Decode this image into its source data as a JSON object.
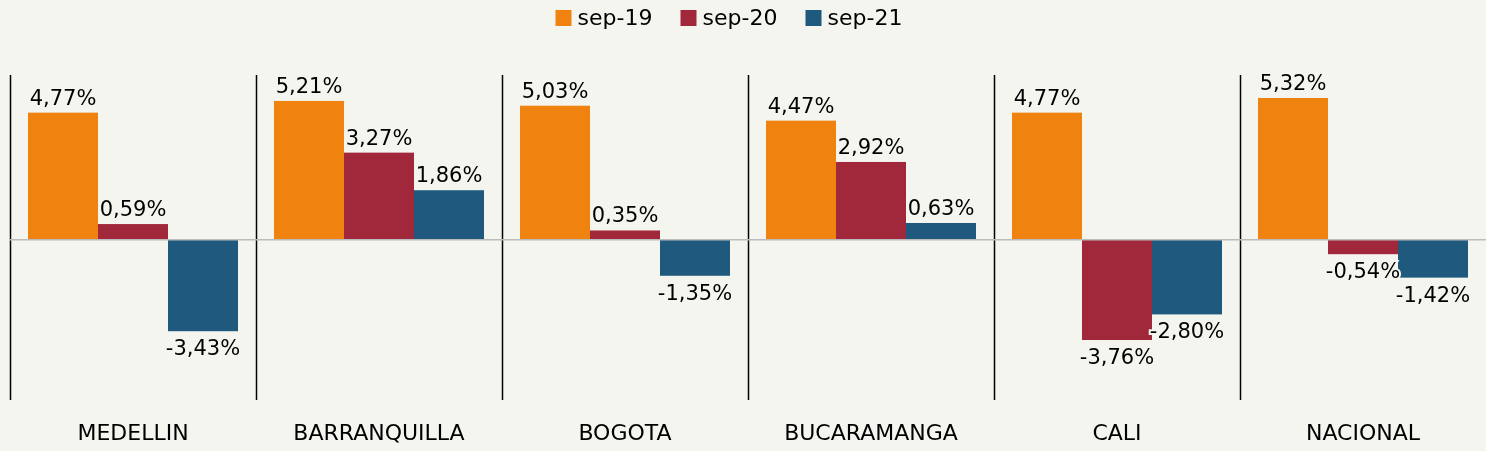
{
  "chart_data": {
    "type": "bar",
    "categories": [
      "MEDELLIN",
      "BARRANQUILLA",
      "BOGOTA",
      "BUCARAMANGA",
      "CALI",
      "NACIONAL"
    ],
    "series": [
      {
        "name": "sep-19",
        "color": "#f0820f",
        "values": [
          4.77,
          5.21,
          5.03,
          4.47,
          4.77,
          5.32
        ],
        "value_labels": [
          "4,77%",
          "5,21%",
          "5,03%",
          "4,47%",
          "4,77%",
          "5,32%"
        ]
      },
      {
        "name": "sep-20",
        "color": "#a0283a",
        "values": [
          0.59,
          3.27,
          0.35,
          2.92,
          -3.76,
          -0.54
        ],
        "value_labels": [
          "0,59%",
          "3,27%",
          "0,35%",
          "2,92%",
          "-3,76%",
          "-0,54%"
        ]
      },
      {
        "name": "sep-21",
        "color": "#1f5a7e",
        "values": [
          -3.43,
          1.86,
          -1.35,
          0.63,
          -2.8,
          -1.42
        ],
        "value_labels": [
          "-3,43%",
          "1,86%",
          "-1,35%",
          "0,63%",
          "-2,80%",
          "-1,42%"
        ]
      }
    ],
    "legend": "top",
    "grid": false
  }
}
